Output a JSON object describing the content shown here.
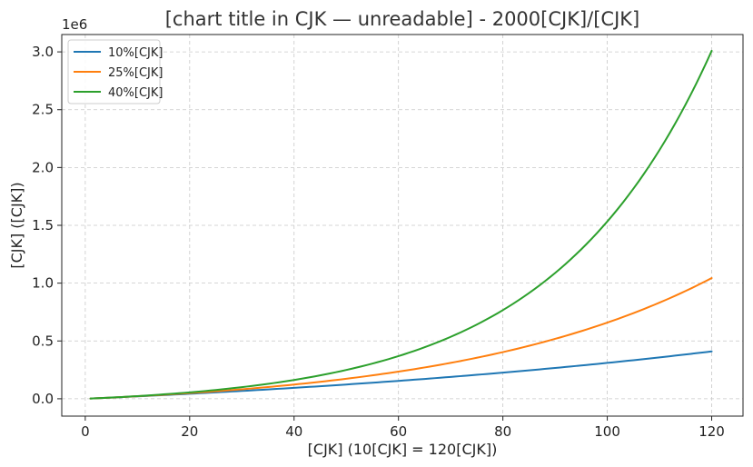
{
  "chart_data": {
    "type": "line",
    "title": "[chart title in CJK — unreadable] - 2000[CJK]/[CJK]",
    "xlabel": "[CJK] (10[CJK] = 120[CJK])",
    "ylabel": "[CJK] ([CJK])",
    "y_offset_label": "1e6",
    "xlim": [
      -4.5,
      126
    ],
    "ylim": [
      -0.15,
      3.15
    ],
    "y_scale_multiplier": 1000000,
    "xticks": [
      0,
      20,
      40,
      60,
      80,
      100,
      120
    ],
    "xtick_labels": [
      "0",
      "20",
      "40",
      "60",
      "80",
      "100",
      "120"
    ],
    "yticks": [
      0,
      0.5,
      1.0,
      1.5,
      2.0,
      2.5,
      3.0
    ],
    "ytick_labels": [
      "0.0",
      "0.5",
      "1.0",
      "1.5",
      "2.0",
      "2.5",
      "3.0"
    ],
    "grid": true,
    "legend_position": "top-left",
    "monthly_contribution": 2000,
    "x_start": 1,
    "x_end": 120,
    "series": [
      {
        "name": "10%[CJK]",
        "annual_rate": 0.1,
        "color": "#1f77b4"
      },
      {
        "name": "25%[CJK]",
        "annual_rate": 0.25,
        "color": "#ff7f0e"
      },
      {
        "name": "40%[CJK]",
        "annual_rate": 0.4,
        "color": "#2ca02c"
      }
    ],
    "approx_end_values": [
      409700,
      1043000,
      3010000
    ]
  }
}
